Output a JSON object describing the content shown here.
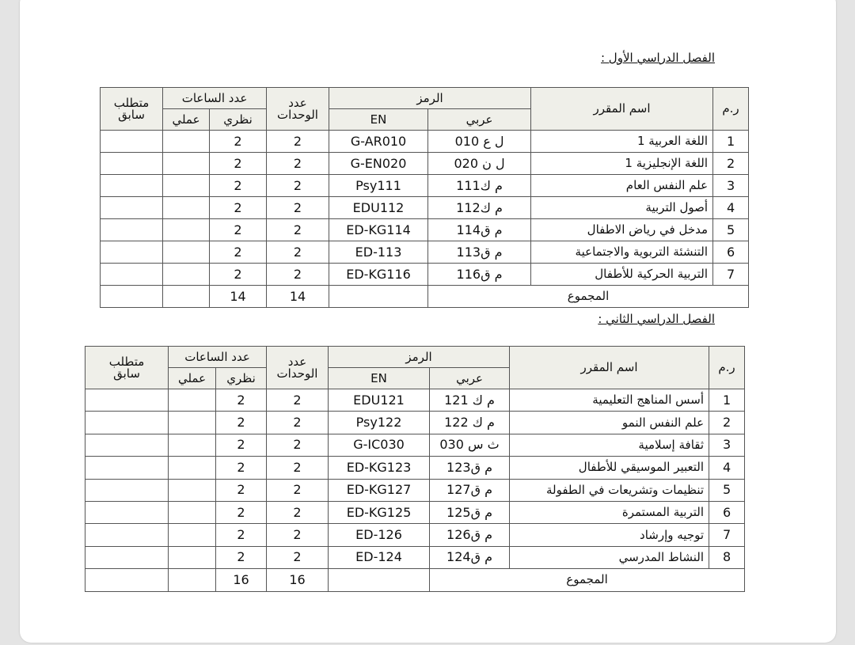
{
  "headers": {
    "num": "ر.م",
    "course_name": "اسم المقرر",
    "code": "الرمز",
    "code_ar": "عربي",
    "code_en": "EN",
    "units": "عدد الوحدات",
    "hours": "عدد الساعات",
    "theory": "نظري",
    "practical": "عملي",
    "prereq": "متطلب سابق"
  },
  "semesters": [
    {
      "title": "الفصل الدراسي الأول :",
      "rows": [
        {
          "n": "1",
          "name": "اللغة العربية 1",
          "ar": "ل ع 010",
          "en": "G-AR010",
          "units": "2",
          "theory": "2",
          "practical": "",
          "prereq": ""
        },
        {
          "n": "2",
          "name": "اللغة الإنجليزية 1",
          "ar": "ل ن 020",
          "en": "G-EN020",
          "units": "2",
          "theory": "2",
          "practical": "",
          "prereq": ""
        },
        {
          "n": "3",
          "name": "علم  النفس العام",
          "ar": "م ك111",
          "en": "Psy111",
          "units": "2",
          "theory": "2",
          "practical": "",
          "prereq": ""
        },
        {
          "n": "4",
          "name": "أصول التربية",
          "ar": "م ك112",
          "en": "EDU112",
          "units": "2",
          "theory": "2",
          "practical": "",
          "prereq": ""
        },
        {
          "n": "5",
          "name": "مدخل في رياض الاطفال",
          "ar": "م ق114",
          "en": "ED-KG114",
          "units": "2",
          "theory": "2",
          "practical": "",
          "prereq": ""
        },
        {
          "n": "6",
          "name": "التنشئة التربوية والاجتماعية",
          "ar": "م ق113",
          "en": "ED-113",
          "units": "2",
          "theory": "2",
          "practical": "",
          "prereq": ""
        },
        {
          "n": "7",
          "name": "التربية الحركية للأطفال",
          "ar": "م ق116",
          "en": "ED-KG116",
          "units": "2",
          "theory": "2",
          "practical": "",
          "prereq": ""
        }
      ],
      "total_label": "المجموع",
      "total_units": "14",
      "total_theory": "14"
    },
    {
      "title": "الفصل الدراسي الثاني :",
      "rows": [
        {
          "n": "1",
          "name": "أسس المناهج التعليمية",
          "ar": "م ك 121",
          "en": "EDU121",
          "units": "2",
          "theory": "2",
          "practical": "",
          "prereq": ""
        },
        {
          "n": "2",
          "name": "علم النفس النمو",
          "ar": "م ك 122",
          "en": "Psy122",
          "units": "2",
          "theory": "2",
          "practical": "",
          "prereq": ""
        },
        {
          "n": "3",
          "name": "ثقافة إسلامية",
          "ar": "ث س 030",
          "en": "G-IC030",
          "units": "2",
          "theory": "2",
          "practical": "",
          "prereq": ""
        },
        {
          "n": "4",
          "name": "التعبير الموسيقي للأطفال",
          "ar": "م ق123",
          "en": "ED-KG123",
          "units": "2",
          "theory": "2",
          "practical": "",
          "prereq": ""
        },
        {
          "n": "5",
          "name": "تنظيمات وتشريعات في الطفولة",
          "ar": "م ق127",
          "en": "ED-KG127",
          "units": "2",
          "theory": "2",
          "practical": "",
          "prereq": ""
        },
        {
          "n": "6",
          "name": "التربية المستمرة",
          "ar": "م ق125",
          "en": "ED-KG125",
          "units": "2",
          "theory": "2",
          "practical": "",
          "prereq": ""
        },
        {
          "n": "7",
          "name": "توجيه وإرشاد",
          "ar": "م ق126",
          "en": "ED-126",
          "units": "2",
          "theory": "2",
          "practical": "",
          "prereq": ""
        },
        {
          "n": "8",
          "name": "النشاط المدرسي",
          "ar": "م ق124",
          "en": "ED-124",
          "units": "2",
          "theory": "2",
          "practical": "",
          "prereq": ""
        }
      ],
      "total_label": "المجموع",
      "total_units": "16",
      "total_theory": "16"
    }
  ]
}
